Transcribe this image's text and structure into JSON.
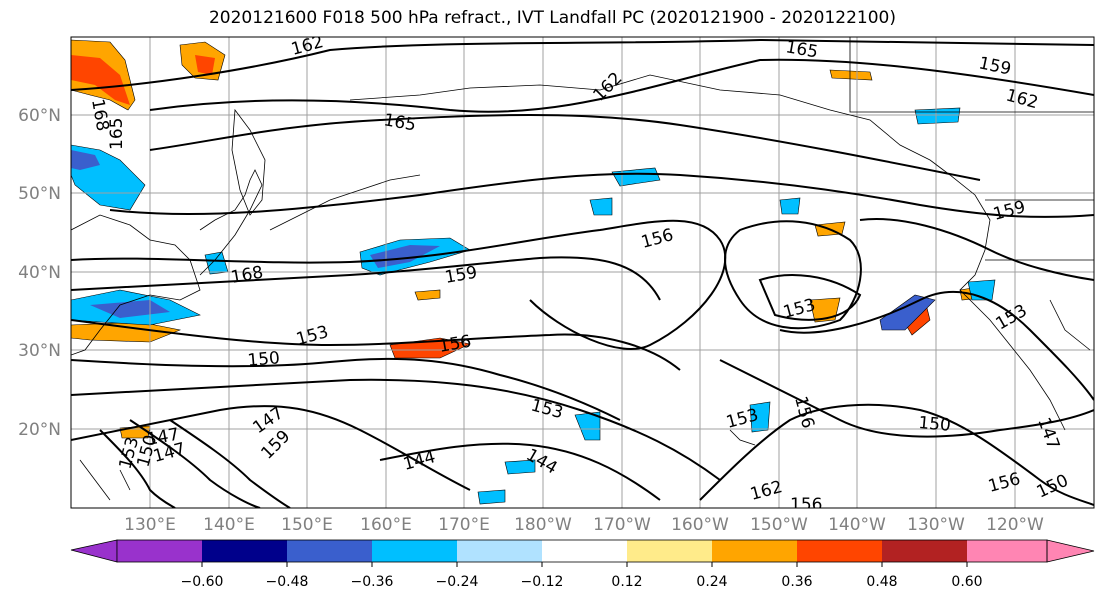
{
  "title": "2020121600 F018 500 hPa refract., IVT Landfall PC (2020121900 - 2020122100)",
  "map": {
    "lat_labels": [
      "60°N",
      "50°N",
      "40°N",
      "30°N",
      "20°N"
    ],
    "lon_labels": [
      "130°E",
      "140°E",
      "150°E",
      "160°E",
      "170°E",
      "180°W",
      "170°W",
      "160°W",
      "150°W",
      "140°W",
      "130°W",
      "120°W"
    ],
    "gridline_color": "#a0a0a0",
    "contour_color": "#000000",
    "contour_labels": [
      {
        "text": "162"
      },
      {
        "text": "165"
      },
      {
        "text": "159"
      },
      {
        "text": "162"
      },
      {
        "text": "168"
      },
      {
        "text": "165"
      },
      {
        "text": "165"
      },
      {
        "text": "162"
      },
      {
        "text": "168"
      },
      {
        "text": "159"
      },
      {
        "text": "156"
      },
      {
        "text": "159"
      },
      {
        "text": "153"
      },
      {
        "text": "153"
      },
      {
        "text": "150"
      },
      {
        "text": "156"
      },
      {
        "text": "153"
      },
      {
        "text": "147"
      },
      {
        "text": "147"
      },
      {
        "text": "144"
      },
      {
        "text": "144"
      },
      {
        "text": "153"
      },
      {
        "text": "156"
      },
      {
        "text": "150"
      },
      {
        "text": "147"
      },
      {
        "text": "156"
      },
      {
        "text": "150"
      },
      {
        "text": "162"
      },
      {
        "text": "156"
      },
      {
        "text": "159"
      },
      {
        "text": "153"
      },
      {
        "text": "150"
      },
      {
        "text": "147"
      },
      {
        "text": "153"
      }
    ]
  },
  "colorbar": {
    "ticks": [
      "−0.60",
      "−0.48",
      "−0.36",
      "−0.24",
      "−0.12",
      "0.12",
      "0.24",
      "0.36",
      "0.48",
      "0.60"
    ],
    "colors": [
      "#9932cc",
      "#00008b",
      "#3a5fcd",
      "#00bfff",
      "#b0e2ff",
      "#ffffff",
      "#ffeb8a",
      "#ffa500",
      "#ff4500",
      "#b22222",
      "#ff85b3"
    ]
  }
}
